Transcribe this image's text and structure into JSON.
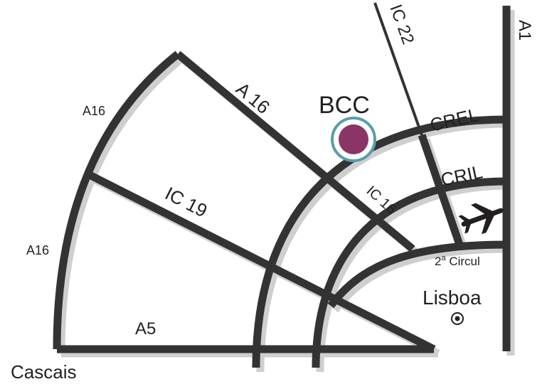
{
  "map": {
    "roads": {
      "a1": "A1",
      "ic22": "IC 22",
      "a16_diagonal": "A 16",
      "a16_upper": "A16",
      "a16_lower": "A16",
      "ic19": "IC 19",
      "ic16": "IC 16",
      "a5": "A5",
      "crel": "CREL",
      "cril": "CRIL",
      "circular_main": "2",
      "circular_sup": "a",
      "circular_rest": " Circul"
    },
    "places": {
      "venue": "BCC",
      "city": "Lisboa",
      "origin": "Cascais"
    },
    "icons": {
      "venue_marker": "venue-marker-icon",
      "airport": "airplane-icon",
      "city": "city-marker-icon"
    },
    "colors": {
      "road": "#333333",
      "road_shadow": "#cfcfcf",
      "venue_fill": "#8a3565",
      "venue_ring": "#5b9ea6",
      "text": "#231f20"
    }
  }
}
